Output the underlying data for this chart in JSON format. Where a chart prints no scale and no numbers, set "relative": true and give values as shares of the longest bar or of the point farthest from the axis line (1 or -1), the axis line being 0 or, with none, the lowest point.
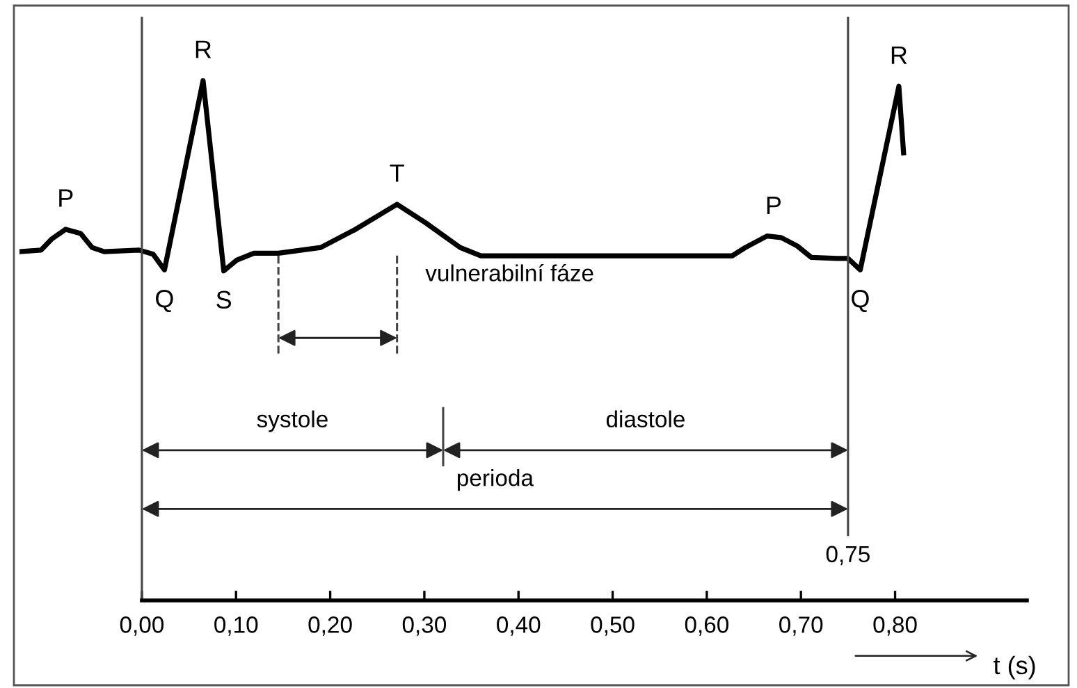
{
  "chart_data": {
    "type": "line",
    "relative": true,
    "xlabel": "t (s)",
    "x": [
      -0.13,
      -0.107,
      -0.096,
      -0.081,
      -0.065,
      -0.053,
      -0.04,
      -0.003,
      0.012,
      0.024,
      0.065,
      0.087,
      0.101,
      0.119,
      0.145,
      0.19,
      0.227,
      0.271,
      0.301,
      0.338,
      0.36,
      0.412,
      0.627,
      0.641,
      0.664,
      0.679,
      0.696,
      0.711,
      0.738,
      0.75,
      0.763,
      0.804,
      0.809
    ],
    "series": [
      {
        "color": "#000000",
        "values": [
          0.671,
          0.674,
          0.695,
          0.714,
          0.706,
          0.679,
          0.671,
          0.674,
          0.666,
          0.636,
          1.0,
          0.634,
          0.655,
          0.668,
          0.668,
          0.679,
          0.714,
          0.762,
          0.727,
          0.679,
          0.663,
          0.663,
          0.663,
          0.679,
          0.701,
          0.698,
          0.682,
          0.66,
          0.658,
          0.658,
          0.636,
          0.989,
          0.861
        ]
      }
    ],
    "xlim": [
      -0.13,
      0.94
    ],
    "xticks": [
      {
        "value": 0,
        "label": "0,00"
      },
      {
        "value": 0.1,
        "label": "0,10"
      },
      {
        "value": 0.2,
        "label": "0,20"
      },
      {
        "value": 0.3,
        "label": "0,30"
      },
      {
        "value": 0.4,
        "label": "0,40"
      },
      {
        "value": 0.5,
        "label": "0,50"
      },
      {
        "value": 0.6,
        "label": "0,60"
      },
      {
        "value": 0.7,
        "label": "0,70"
      },
      {
        "value": 0.8,
        "label": "0,80"
      }
    ],
    "annotations": [
      {
        "text": "P",
        "x": -0.081,
        "y": 0.714
      },
      {
        "text": "Q",
        "x": 0.024,
        "y": 0.636
      },
      {
        "text": "R",
        "x": 0.065,
        "y": 1.0
      },
      {
        "text": "S",
        "x": 0.087,
        "y": 0.634
      },
      {
        "text": "T",
        "x": 0.271,
        "y": 0.762
      },
      {
        "text": "P",
        "x": 0.671,
        "y": 0.7
      },
      {
        "text": "Q",
        "x": 0.763,
        "y": 0.636
      },
      {
        "text": "R",
        "x": 0.804,
        "y": 0.989
      },
      "vulnerabilní fáze",
      "systole",
      "diastole",
      "perioda"
    ],
    "ref_lines": [
      {
        "axis": "x",
        "value": 0
      },
      {
        "axis": "x",
        "value": 0.75,
        "label": "0,75"
      },
      {
        "axis": "x",
        "value": 0.145,
        "line_style": "dashed"
      },
      {
        "axis": "x",
        "value": 0.271,
        "line_style": "dashed"
      },
      {
        "axis": "x",
        "value": 0.32
      }
    ],
    "grid": false,
    "legend": false,
    "marker": "none",
    "line_style": "solid"
  }
}
